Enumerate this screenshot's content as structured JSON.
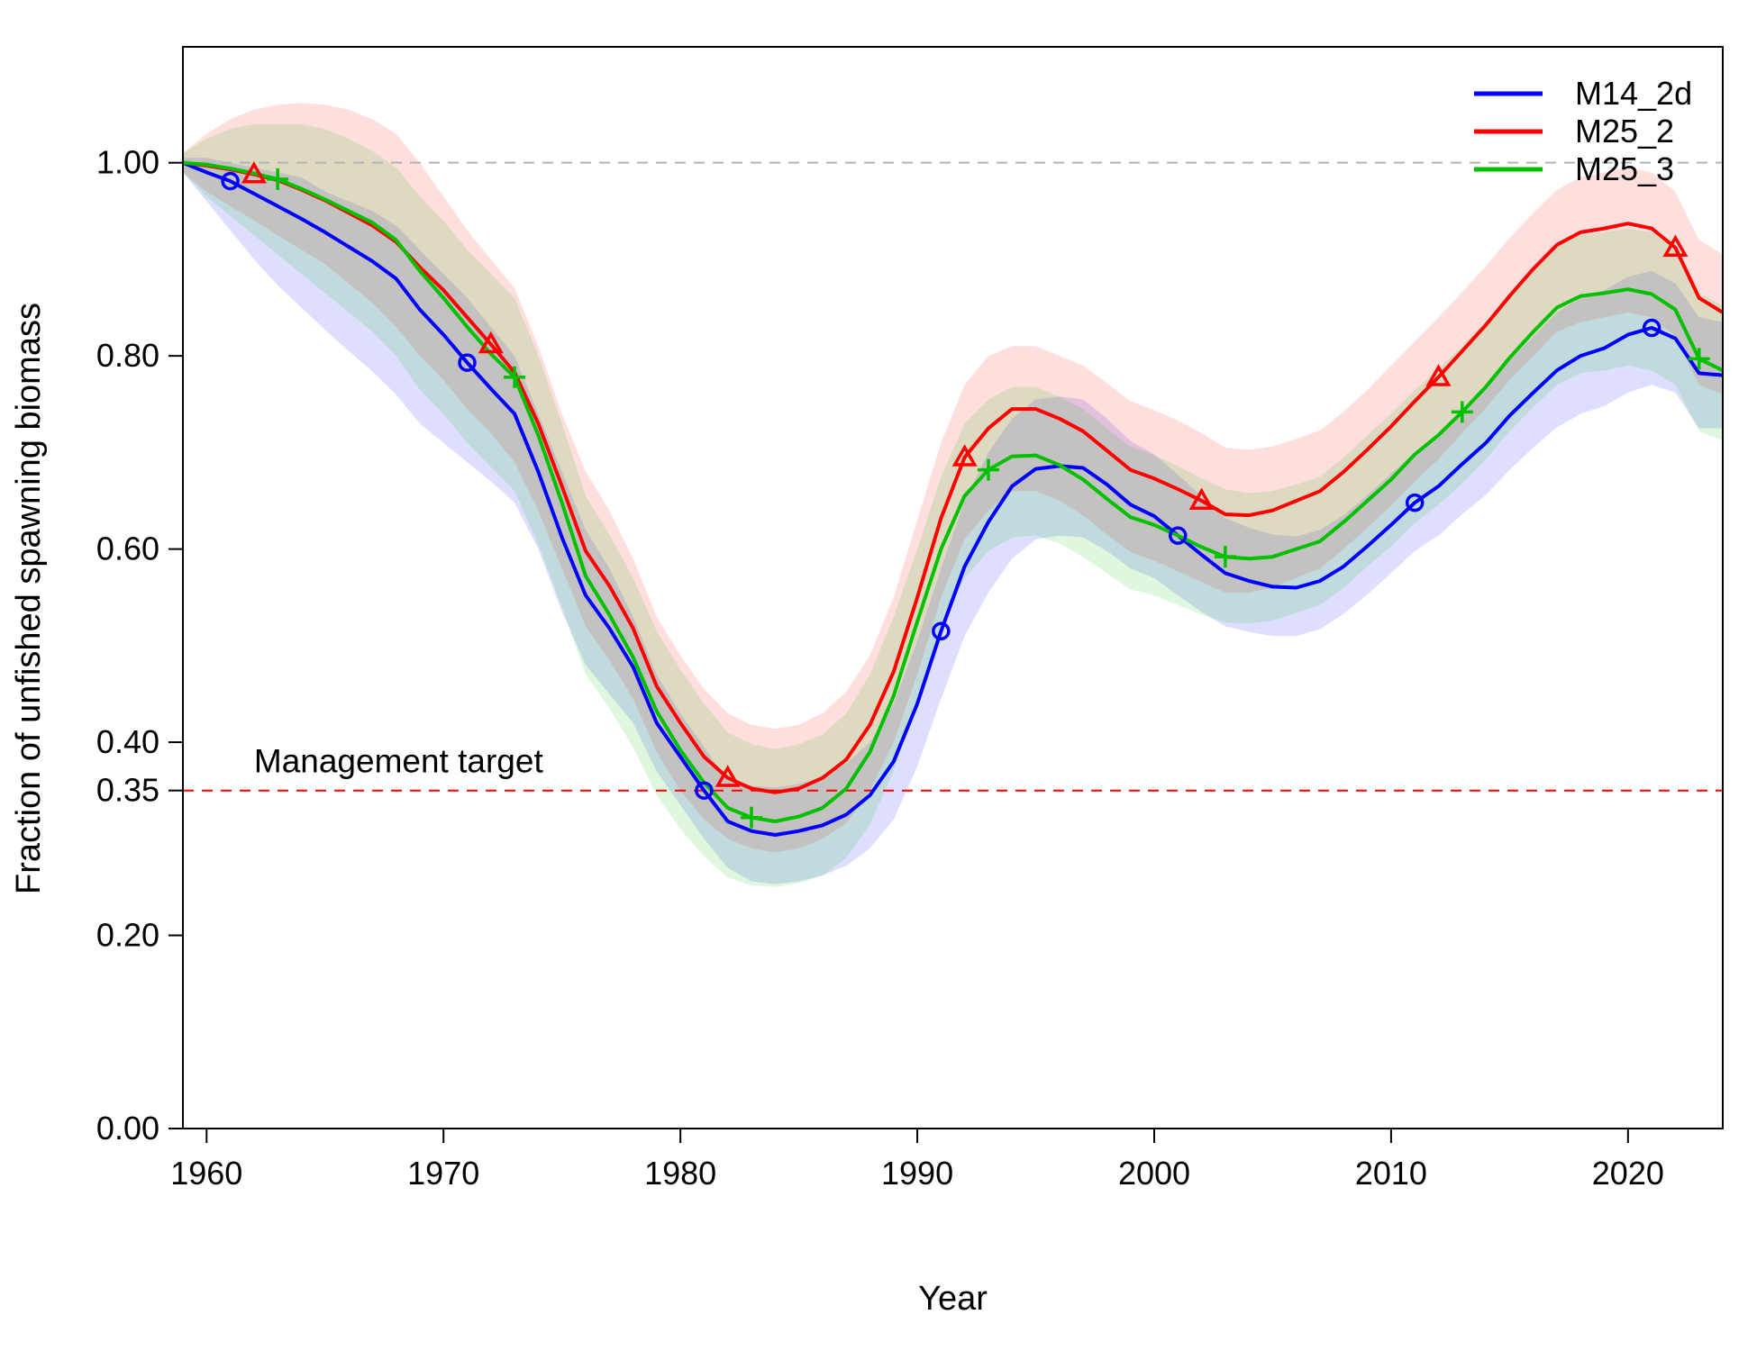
{
  "chart_data": {
    "type": "line",
    "title": "",
    "xlabel": "Year",
    "ylabel": "Fraction of unfished spawning biomass",
    "xlim": [
      1959,
      2024
    ],
    "ylim": [
      0,
      1.12
    ],
    "xticks": [
      1960,
      1970,
      1980,
      1990,
      2000,
      2010,
      2020
    ],
    "yticks": [
      0.0,
      0.2,
      0.35,
      0.4,
      0.6,
      0.8,
      1.0
    ],
    "ytick_labels": [
      "0.00",
      "0.20",
      "0.35",
      "0.40",
      "0.60",
      "0.80",
      "1.00"
    ],
    "reference_lines": [
      {
        "y": 1.0,
        "color": "#b3b3b3",
        "style": "dashed"
      },
      {
        "y": 0.35,
        "color": "#ff0000",
        "style": "dashed",
        "label": "Management target"
      }
    ],
    "legend": {
      "position": "top-right"
    },
    "grid": false,
    "x": [
      1959,
      1960,
      1961,
      1962,
      1963,
      1964,
      1965,
      1966,
      1967,
      1968,
      1969,
      1970,
      1971,
      1972,
      1973,
      1974,
      1975,
      1976,
      1977,
      1978,
      1979,
      1980,
      1981,
      1982,
      1983,
      1984,
      1985,
      1986,
      1987,
      1988,
      1989,
      1990,
      1991,
      1992,
      1993,
      1994,
      1995,
      1996,
      1997,
      1998,
      1999,
      2000,
      2001,
      2002,
      2003,
      2004,
      2005,
      2006,
      2007,
      2008,
      2009,
      2010,
      2011,
      2012,
      2013,
      2014,
      2015,
      2016,
      2017,
      2018,
      2019,
      2020,
      2021,
      2022,
      2023,
      2024
    ],
    "series": [
      {
        "name": "M14_2d",
        "color": "#0000ff",
        "marker": "circle",
        "values": [
          1.0,
          0.99,
          0.981,
          0.968,
          0.955,
          0.942,
          0.928,
          0.913,
          0.898,
          0.88,
          0.848,
          0.822,
          0.793,
          0.766,
          0.74,
          0.68,
          0.612,
          0.552,
          0.518,
          0.478,
          0.42,
          0.385,
          0.35,
          0.318,
          0.308,
          0.304,
          0.308,
          0.314,
          0.325,
          0.345,
          0.38,
          0.44,
          0.515,
          0.582,
          0.628,
          0.665,
          0.683,
          0.686,
          0.684,
          0.667,
          0.646,
          0.634,
          0.614,
          0.594,
          0.575,
          0.567,
          0.561,
          0.56,
          0.567,
          0.582,
          0.603,
          0.625,
          0.648,
          0.665,
          0.688,
          0.71,
          0.738,
          0.762,
          0.785,
          0.8,
          0.808,
          0.822,
          0.829,
          0.818,
          0.782,
          0.78
        ],
        "band_lower": [
          0.99,
          0.96,
          0.93,
          0.9,
          0.873,
          0.85,
          0.827,
          0.805,
          0.784,
          0.76,
          0.73,
          0.71,
          0.69,
          0.67,
          0.648,
          0.6,
          0.535,
          0.48,
          0.45,
          0.42,
          0.37,
          0.335,
          0.3,
          0.27,
          0.256,
          0.253,
          0.256,
          0.262,
          0.272,
          0.29,
          0.32,
          0.375,
          0.445,
          0.51,
          0.555,
          0.59,
          0.61,
          0.614,
          0.612,
          0.598,
          0.58,
          0.57,
          0.552,
          0.535,
          0.52,
          0.514,
          0.51,
          0.51,
          0.517,
          0.533,
          0.553,
          0.575,
          0.598,
          0.614,
          0.636,
          0.656,
          0.682,
          0.705,
          0.726,
          0.74,
          0.748,
          0.762,
          0.77,
          0.762,
          0.725,
          0.725
        ],
        "band_upper": [
          1.005,
          1.005,
          1.0,
          0.995,
          0.99,
          0.985,
          0.97,
          0.96,
          0.95,
          0.935,
          0.91,
          0.885,
          0.86,
          0.83,
          0.8,
          0.74,
          0.68,
          0.62,
          0.58,
          0.53,
          0.47,
          0.43,
          0.395,
          0.36,
          0.355,
          0.353,
          0.357,
          0.364,
          0.378,
          0.4,
          0.44,
          0.505,
          0.58,
          0.65,
          0.7,
          0.735,
          0.755,
          0.758,
          0.755,
          0.735,
          0.712,
          0.698,
          0.677,
          0.655,
          0.632,
          0.622,
          0.615,
          0.613,
          0.62,
          0.635,
          0.656,
          0.678,
          0.7,
          0.718,
          0.742,
          0.766,
          0.795,
          0.82,
          0.845,
          0.86,
          0.868,
          0.882,
          0.888,
          0.875,
          0.84,
          0.835
        ]
      },
      {
        "name": "M25_2",
        "color": "#ff0000",
        "marker": "triangle",
        "values": [
          1.0,
          0.997,
          0.993,
          0.988,
          0.982,
          0.972,
          0.961,
          0.948,
          0.935,
          0.918,
          0.892,
          0.868,
          0.84,
          0.812,
          0.783,
          0.73,
          0.665,
          0.598,
          0.562,
          0.518,
          0.458,
          0.42,
          0.385,
          0.363,
          0.352,
          0.348,
          0.352,
          0.363,
          0.382,
          0.418,
          0.473,
          0.55,
          0.632,
          0.695,
          0.725,
          0.745,
          0.745,
          0.735,
          0.722,
          0.702,
          0.682,
          0.673,
          0.662,
          0.65,
          0.636,
          0.635,
          0.64,
          0.65,
          0.66,
          0.68,
          0.703,
          0.727,
          0.753,
          0.778,
          0.805,
          0.832,
          0.862,
          0.89,
          0.915,
          0.928,
          0.932,
          0.937,
          0.932,
          0.912,
          0.86,
          0.845
        ],
        "band_lower": [
          0.99,
          0.97,
          0.955,
          0.94,
          0.925,
          0.91,
          0.895,
          0.875,
          0.855,
          0.83,
          0.8,
          0.775,
          0.745,
          0.72,
          0.69,
          0.64,
          0.58,
          0.52,
          0.485,
          0.445,
          0.39,
          0.35,
          0.32,
          0.3,
          0.29,
          0.286,
          0.29,
          0.3,
          0.316,
          0.35,
          0.4,
          0.47,
          0.55,
          0.61,
          0.64,
          0.66,
          0.66,
          0.65,
          0.635,
          0.615,
          0.597,
          0.588,
          0.577,
          0.566,
          0.555,
          0.555,
          0.56,
          0.57,
          0.58,
          0.6,
          0.622,
          0.645,
          0.67,
          0.693,
          0.72,
          0.746,
          0.775,
          0.8,
          0.825,
          0.835,
          0.84,
          0.845,
          0.84,
          0.82,
          0.77,
          0.76
        ],
        "band_upper": [
          1.01,
          1.03,
          1.045,
          1.055,
          1.06,
          1.062,
          1.06,
          1.055,
          1.045,
          1.03,
          1.0,
          0.965,
          0.93,
          0.9,
          0.87,
          0.81,
          0.74,
          0.68,
          0.64,
          0.59,
          0.53,
          0.49,
          0.455,
          0.43,
          0.418,
          0.414,
          0.418,
          0.43,
          0.452,
          0.49,
          0.55,
          0.63,
          0.71,
          0.77,
          0.8,
          0.81,
          0.81,
          0.8,
          0.79,
          0.772,
          0.753,
          0.744,
          0.733,
          0.72,
          0.705,
          0.703,
          0.706,
          0.714,
          0.723,
          0.742,
          0.765,
          0.79,
          0.815,
          0.84,
          0.866,
          0.893,
          0.922,
          0.948,
          0.972,
          0.985,
          0.99,
          0.995,
          0.99,
          0.97,
          0.92,
          0.905
        ]
      },
      {
        "name": "M25_3",
        "color": "#00c000",
        "marker": "plus",
        "values": [
          1.0,
          0.998,
          0.994,
          0.989,
          0.983,
          0.973,
          0.962,
          0.95,
          0.938,
          0.92,
          0.888,
          0.86,
          0.83,
          0.802,
          0.778,
          0.718,
          0.648,
          0.572,
          0.532,
          0.488,
          0.432,
          0.392,
          0.358,
          0.332,
          0.322,
          0.318,
          0.323,
          0.332,
          0.352,
          0.39,
          0.448,
          0.525,
          0.6,
          0.655,
          0.682,
          0.696,
          0.697,
          0.687,
          0.672,
          0.652,
          0.633,
          0.625,
          0.614,
          0.602,
          0.592,
          0.59,
          0.592,
          0.6,
          0.608,
          0.628,
          0.65,
          0.672,
          0.698,
          0.718,
          0.742,
          0.768,
          0.798,
          0.825,
          0.85,
          0.862,
          0.865,
          0.869,
          0.864,
          0.848,
          0.797,
          0.785
        ],
        "band_lower": [
          0.99,
          0.965,
          0.945,
          0.925,
          0.905,
          0.885,
          0.865,
          0.845,
          0.825,
          0.8,
          0.765,
          0.74,
          0.71,
          0.685,
          0.66,
          0.605,
          0.54,
          0.47,
          0.435,
          0.395,
          0.345,
          0.31,
          0.282,
          0.26,
          0.252,
          0.25,
          0.254,
          0.262,
          0.28,
          0.315,
          0.37,
          0.445,
          0.52,
          0.57,
          0.598,
          0.612,
          0.614,
          0.606,
          0.592,
          0.575,
          0.558,
          0.552,
          0.542,
          0.532,
          0.524,
          0.523,
          0.526,
          0.534,
          0.542,
          0.56,
          0.582,
          0.603,
          0.627,
          0.646,
          0.668,
          0.693,
          0.722,
          0.747,
          0.77,
          0.782,
          0.785,
          0.79,
          0.785,
          0.77,
          0.722,
          0.712
        ],
        "band_upper": [
          1.01,
          1.025,
          1.035,
          1.04,
          1.04,
          1.04,
          1.035,
          1.025,
          1.012,
          0.995,
          0.965,
          0.94,
          0.91,
          0.885,
          0.86,
          0.8,
          0.73,
          0.655,
          0.615,
          0.57,
          0.515,
          0.475,
          0.44,
          0.41,
          0.398,
          0.393,
          0.398,
          0.408,
          0.43,
          0.47,
          0.53,
          0.6,
          0.675,
          0.73,
          0.755,
          0.768,
          0.768,
          0.758,
          0.745,
          0.725,
          0.706,
          0.697,
          0.686,
          0.673,
          0.662,
          0.658,
          0.66,
          0.667,
          0.675,
          0.695,
          0.718,
          0.74,
          0.765,
          0.787,
          0.81,
          0.836,
          0.865,
          0.89,
          0.913,
          0.925,
          0.928,
          0.932,
          0.928,
          0.912,
          0.865,
          0.852
        ]
      }
    ]
  }
}
